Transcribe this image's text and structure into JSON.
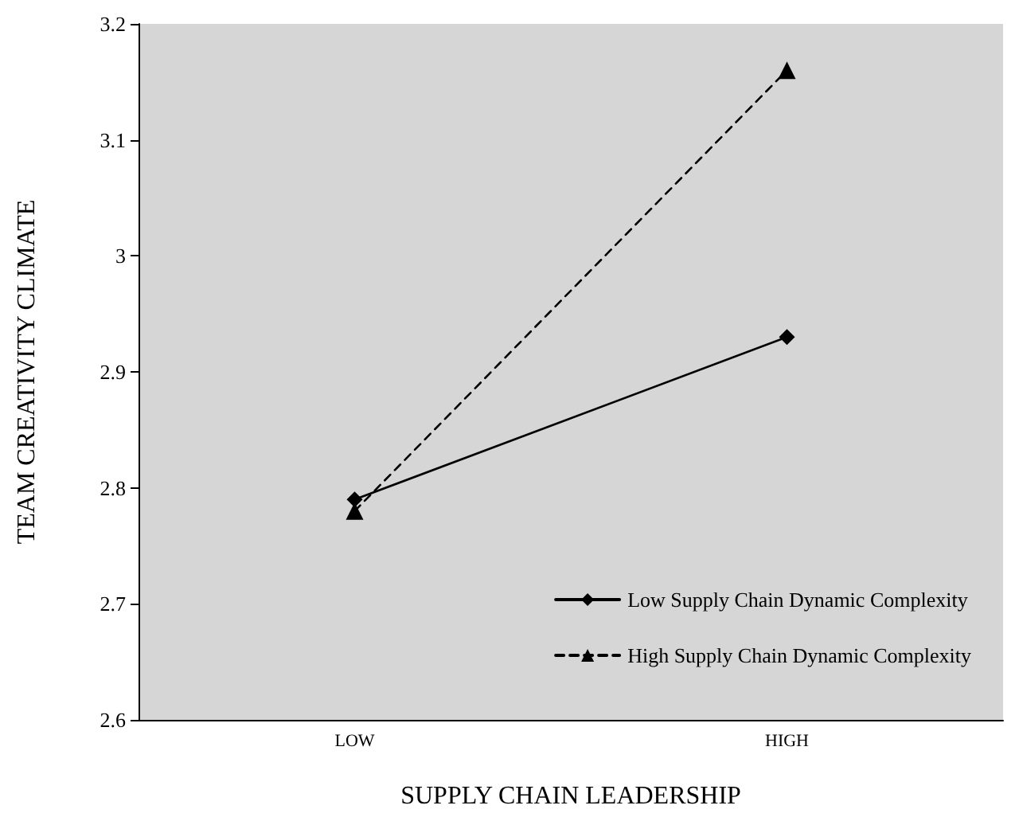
{
  "chart_data": {
    "type": "line",
    "xlabel": "SUPPLY CHAIN LEADERSHIP",
    "ylabel": "TEAM CREATIVITY CLIMATE",
    "categories": [
      "LOW",
      "HIGH"
    ],
    "series": [
      {
        "name": "Low Supply Chain Dynamic Complexity",
        "color": "#000000",
        "values": [
          2.79,
          2.93
        ],
        "marker": "diamond",
        "line_style": "solid"
      },
      {
        "name": "High Supply Chain Dynamic Complexity",
        "color": "#000000",
        "values": [
          2.78,
          3.16
        ],
        "marker": "triangle",
        "line_style": "dashed"
      }
    ],
    "ylim": [
      2.6,
      3.2
    ],
    "yticks": [
      2.6,
      2.7,
      2.8,
      2.9,
      3,
      3.1,
      3.2
    ],
    "grid": false,
    "legend": "bottom right"
  }
}
